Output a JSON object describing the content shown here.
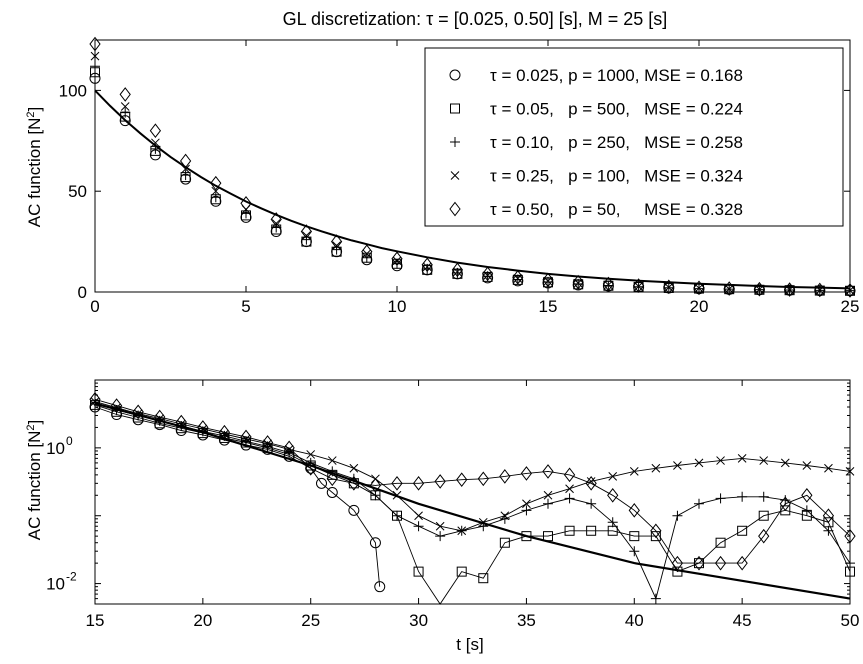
{
  "chart_data": [
    {
      "type": "scatter",
      "title": "GL discretization:  τ = [0.025, 0.50] [s], M = 25 [s]",
      "xlabel": "",
      "ylabel": "AC function [N²]",
      "xlim": [
        0,
        25
      ],
      "ylim": [
        0,
        125
      ],
      "xticks": [
        "0",
        "5",
        "10",
        "15",
        "20",
        "25"
      ],
      "yticks": [
        "0",
        "50",
        "100"
      ],
      "legend_placement": "top-right",
      "reference_curve": {
        "name": "",
        "x": [
          0,
          0.5,
          1,
          1.5,
          2,
          2.5,
          3,
          3.5,
          4,
          4.5,
          5,
          5.5,
          6,
          6.5,
          7,
          7.5,
          8,
          8.5,
          9,
          9.5,
          10,
          11,
          12,
          13,
          14,
          15,
          16,
          17,
          18,
          19,
          20,
          21,
          22,
          23,
          24,
          25
        ],
        "y": [
          100.0,
          92.3,
          85.2,
          78.7,
          72.6,
          67.0,
          61.9,
          57.1,
          52.7,
          48.7,
          44.9,
          41.5,
          38.3,
          35.3,
          32.6,
          30.1,
          27.8,
          25.6,
          23.7,
          21.8,
          20.2,
          17.2,
          14.6,
          12.4,
          10.6,
          9.0,
          7.7,
          6.6,
          5.6,
          4.8,
          4.1,
          3.5,
          3.0,
          2.5,
          2.2,
          1.8
        ]
      },
      "series": [
        {
          "name": "τ = 0.025, p = 1000, MSE = 0.168",
          "marker": "circle",
          "x": [
            0,
            1,
            2,
            3,
            4,
            5,
            6,
            7,
            8,
            9,
            10,
            11,
            12,
            13,
            14,
            15,
            16,
            17,
            18,
            19,
            20,
            21,
            22,
            23,
            24,
            25
          ],
          "y": [
            106,
            85,
            68,
            56,
            45,
            37,
            30,
            25,
            20,
            16,
            13,
            11,
            9,
            7,
            5.5,
            4.5,
            3.5,
            3,
            2.4,
            2,
            1.6,
            1.3,
            1.1,
            0.9,
            0.7,
            0.6
          ]
        },
        {
          "name": "τ = 0.05,   p = 500,   MSE = 0.224",
          "marker": "square",
          "x": [
            0,
            1,
            2,
            3,
            4,
            5,
            6,
            7,
            8,
            9,
            10,
            11,
            12,
            13,
            14,
            15,
            16,
            17,
            18,
            19,
            20,
            21,
            22,
            23,
            24,
            25
          ],
          "y": [
            109,
            87,
            70,
            57,
            46,
            38,
            31,
            25,
            20,
            17,
            14,
            11,
            9,
            7.5,
            6,
            4.8,
            3.8,
            3.1,
            2.5,
            2,
            1.7,
            1.4,
            1.1,
            0.9,
            0.7,
            0.6
          ]
        },
        {
          "name": "τ = 0.10,   p = 250,   MSE = 0.258",
          "marker": "plus",
          "x": [
            0,
            1,
            2,
            3,
            4,
            5,
            6,
            7,
            8,
            9,
            10,
            11,
            12,
            13,
            14,
            15,
            16,
            17,
            18,
            19,
            20,
            21,
            22,
            23,
            24,
            25
          ],
          "y": [
            112,
            89,
            71,
            58,
            47,
            39,
            32,
            26,
            21,
            17,
            14,
            11.5,
            9.5,
            7.8,
            6.2,
            5,
            4,
            3.2,
            2.6,
            2.1,
            1.7,
            1.4,
            1.2,
            1,
            0.8,
            0.7
          ]
        },
        {
          "name": "τ = 0.25,   p = 100,   MSE = 0.324",
          "marker": "cross",
          "x": [
            0,
            1,
            2,
            3,
            4,
            5,
            6,
            7,
            8,
            9,
            10,
            11,
            12,
            13,
            14,
            15,
            16,
            17,
            18,
            19,
            20,
            21,
            22,
            23,
            24,
            25
          ],
          "y": [
            117,
            92,
            74,
            61,
            50,
            41,
            34,
            28,
            23,
            19,
            15.5,
            12.5,
            10,
            8.2,
            6.7,
            5.4,
            4.4,
            3.5,
            2.8,
            2.3,
            1.9,
            1.5,
            1.3,
            1.1,
            0.9,
            0.8
          ]
        },
        {
          "name": "τ = 0.50,   p = 50,     MSE = 0.328",
          "marker": "diamond",
          "x": [
            0,
            1,
            2,
            3,
            4,
            5,
            6,
            7,
            8,
            9,
            10,
            11,
            12,
            13,
            14,
            15,
            16,
            17,
            18,
            19,
            20,
            21,
            22,
            23,
            24,
            25
          ],
          "y": [
            123,
            98,
            80,
            65,
            54,
            44,
            36,
            30,
            25,
            20,
            16.5,
            13.5,
            11,
            9,
            7.3,
            6,
            4.9,
            4,
            3.2,
            2.6,
            2.1,
            1.7,
            1.4,
            1.2,
            1,
            0.8
          ]
        }
      ]
    },
    {
      "type": "line",
      "title": "",
      "xlabel": "t [s]",
      "ylabel": "AC function [N²]",
      "xlim": [
        15,
        50
      ],
      "ylim": [
        0.005,
        10
      ],
      "yscale": "log",
      "xticks": [
        "15",
        "20",
        "25",
        "30",
        "35",
        "40",
        "45",
        "50"
      ],
      "yticks_log": [
        0.01,
        1
      ],
      "reference_curve": {
        "name": "",
        "x": [
          15,
          20,
          25,
          30,
          35,
          40,
          45,
          50
        ],
        "y": [
          4.5,
          1.7,
          0.55,
          0.15,
          0.05,
          0.02,
          0.011,
          0.006
        ]
      },
      "series": [
        {
          "name": "τ = 0.025",
          "marker": "circle",
          "x": [
            15,
            16,
            17,
            18,
            19,
            20,
            21,
            22,
            23,
            24,
            25,
            25.5,
            26,
            27,
            28,
            28.2
          ],
          "y": [
            4.0,
            3.1,
            2.6,
            2.2,
            1.8,
            1.55,
            1.3,
            1.1,
            0.95,
            0.75,
            0.5,
            0.3,
            0.22,
            0.12,
            0.04,
            0.009
          ]
        },
        {
          "name": "τ = 0.05",
          "marker": "square",
          "x": [
            15,
            16,
            17,
            18,
            19,
            20,
            21,
            22,
            23,
            24,
            25,
            26,
            27,
            28,
            29,
            30,
            31,
            32,
            33,
            34,
            35,
            36,
            37,
            38,
            39,
            40,
            41,
            42,
            43,
            44,
            45,
            46,
            47,
            48,
            49,
            50
          ],
          "y": [
            4.3,
            3.4,
            2.8,
            2.3,
            1.95,
            1.65,
            1.4,
            1.2,
            1.0,
            0.8,
            0.55,
            0.4,
            0.3,
            0.2,
            0.1,
            0.015,
            0.005,
            0.015,
            0.012,
            0.04,
            0.05,
            0.05,
            0.06,
            0.06,
            0.06,
            0.05,
            0.05,
            0.015,
            0.02,
            0.04,
            0.06,
            0.1,
            0.12,
            0.1,
            0.08,
            0.015
          ]
        },
        {
          "name": "τ = 0.10",
          "marker": "plus",
          "x": [
            15,
            16,
            17,
            18,
            19,
            20,
            21,
            22,
            23,
            24,
            25,
            26,
            27,
            28,
            29,
            30,
            31,
            32,
            33,
            34,
            35,
            36,
            37,
            38,
            39,
            40,
            41,
            42,
            43,
            44,
            45,
            46,
            47,
            48,
            49,
            50
          ],
          "y": [
            4.6,
            3.6,
            3.0,
            2.5,
            2.1,
            1.75,
            1.5,
            1.25,
            1.05,
            0.85,
            0.6,
            0.45,
            0.35,
            0.2,
            0.1,
            0.07,
            0.05,
            0.06,
            0.07,
            0.09,
            0.12,
            0.15,
            0.18,
            0.15,
            0.08,
            0.03,
            0.006,
            0.1,
            0.15,
            0.18,
            0.19,
            0.19,
            0.17,
            0.12,
            0.06,
            0.02
          ]
        },
        {
          "name": "τ = 0.25",
          "marker": "cross",
          "x": [
            15,
            16,
            17,
            18,
            19,
            20,
            21,
            22,
            23,
            24,
            25,
            26,
            27,
            28,
            29,
            30,
            31,
            32,
            33,
            34,
            35,
            36,
            37,
            38,
            39,
            40,
            41,
            42,
            43,
            44,
            45,
            46,
            47,
            48,
            49,
            50
          ],
          "y": [
            4.8,
            3.9,
            3.2,
            2.7,
            2.25,
            1.9,
            1.6,
            1.35,
            1.15,
            0.95,
            0.8,
            0.65,
            0.5,
            0.35,
            0.2,
            0.1,
            0.07,
            0.06,
            0.08,
            0.1,
            0.15,
            0.2,
            0.25,
            0.32,
            0.38,
            0.45,
            0.5,
            0.55,
            0.6,
            0.65,
            0.7,
            0.65,
            0.6,
            0.55,
            0.5,
            0.45
          ]
        },
        {
          "name": "τ = 0.50",
          "marker": "diamond",
          "x": [
            15,
            16,
            17,
            18,
            19,
            20,
            21,
            22,
            23,
            24,
            25,
            26,
            27,
            28,
            29,
            30,
            31,
            32,
            33,
            34,
            35,
            36,
            37,
            38,
            39,
            40,
            41,
            42,
            43,
            44,
            45,
            46,
            47,
            48,
            49,
            50
          ],
          "y": [
            5.2,
            4.2,
            3.4,
            2.85,
            2.4,
            2.0,
            1.7,
            1.45,
            1.2,
            1.0,
            0.5,
            0.35,
            0.3,
            0.28,
            0.3,
            0.3,
            0.32,
            0.34,
            0.35,
            0.38,
            0.42,
            0.45,
            0.4,
            0.3,
            0.2,
            0.12,
            0.06,
            0.02,
            0.02,
            0.02,
            0.02,
            0.05,
            0.15,
            0.2,
            0.1,
            0.05
          ]
        }
      ]
    }
  ]
}
